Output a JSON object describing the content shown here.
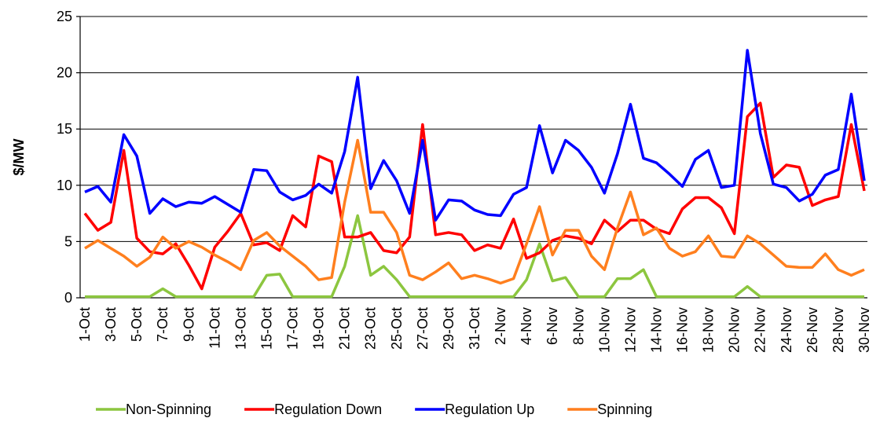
{
  "chart_data": {
    "type": "line",
    "y_label": "$/MW",
    "categories": [
      "1-Oct",
      null,
      "3-Oct",
      null,
      "5-Oct",
      null,
      "7-Oct",
      null,
      "9-Oct",
      null,
      "11-Oct",
      null,
      "13-Oct",
      null,
      "15-Oct",
      null,
      "17-Oct",
      null,
      "19-Oct",
      null,
      "21-Oct",
      null,
      "23-Oct",
      null,
      "25-Oct",
      null,
      "27-Oct",
      null,
      "29-Oct",
      null,
      "31-Oct",
      null,
      "2-Nov",
      null,
      "4-Nov",
      null,
      "6-Nov",
      null,
      "8-Nov",
      null,
      "10-Nov",
      null,
      "12-Nov",
      null,
      "14-Nov",
      null,
      "16-Nov",
      null,
      "18-Nov",
      null,
      "20-Nov",
      null,
      "22-Nov",
      null,
      "24-Nov",
      null,
      "26-Nov",
      null,
      "28-Nov",
      null,
      "30-Nov"
    ],
    "series": [
      {
        "name": "Non-Spinning",
        "color": "#8cc63f",
        "values": [
          0.1,
          0.1,
          0.1,
          0.1,
          0.1,
          0.1,
          0.8,
          0.1,
          0.1,
          0.1,
          0.1,
          0.1,
          0.1,
          0.1,
          2.0,
          2.1,
          0.1,
          0.1,
          0.1,
          0.1,
          2.8,
          7.3,
          2.0,
          2.8,
          1.6,
          0.1,
          0.1,
          0.1,
          0.1,
          0.1,
          0.1,
          0.1,
          0.1,
          0.1,
          1.6,
          4.8,
          1.5,
          1.8,
          0.1,
          0.1,
          0.1,
          1.7,
          1.7,
          2.5,
          0.1,
          0.1,
          0.1,
          0.1,
          0.1,
          0.1,
          0.1,
          1.0,
          0.1,
          0.1,
          0.1,
          0.1,
          0.1,
          0.1,
          0.1,
          0.1,
          0.1
        ]
      },
      {
        "name": "Regulation Down",
        "color": "#ff0000",
        "values": [
          7.5,
          6.0,
          6.7,
          13.1,
          5.3,
          4.1,
          3.9,
          4.8,
          2.9,
          0.8,
          4.5,
          5.9,
          7.5,
          4.7,
          4.9,
          4.2,
          7.3,
          6.3,
          12.6,
          12.1,
          5.4,
          5.4,
          5.8,
          4.2,
          4.0,
          5.4,
          15.4,
          5.6,
          5.8,
          5.6,
          4.2,
          4.7,
          4.4,
          7.0,
          3.5,
          4.0,
          5.1,
          5.5,
          5.3,
          4.8,
          6.9,
          5.9,
          6.9,
          6.9,
          6.1,
          5.7,
          7.9,
          8.9,
          8.9,
          8.0,
          5.7,
          16.1,
          17.3,
          10.7,
          11.8,
          11.6,
          8.2,
          8.7,
          9.0,
          15.4,
          9.5
        ]
      },
      {
        "name": "Regulation Up",
        "color": "#0000ff",
        "values": [
          9.4,
          9.9,
          8.5,
          14.5,
          12.6,
          7.5,
          8.8,
          8.1,
          8.5,
          8.4,
          9.0,
          8.3,
          7.6,
          11.4,
          11.3,
          9.4,
          8.7,
          9.1,
          10.1,
          9.3,
          13.0,
          19.6,
          9.7,
          12.2,
          10.4,
          7.5,
          14.0,
          6.9,
          8.7,
          8.6,
          7.8,
          7.4,
          7.3,
          9.2,
          9.8,
          15.3,
          11.1,
          14.0,
          13.1,
          11.6,
          9.3,
          12.8,
          17.2,
          12.4,
          12.0,
          11.0,
          9.9,
          12.3,
          13.1,
          9.8,
          10.0,
          22.0,
          14.6,
          10.1,
          9.8,
          8.6,
          9.2,
          10.9,
          11.4,
          18.1,
          10.4
        ]
      },
      {
        "name": "Spinning",
        "color": "#ff7f1e",
        "values": [
          4.4,
          5.1,
          4.4,
          3.7,
          2.8,
          3.6,
          5.4,
          4.4,
          5.0,
          4.5,
          3.8,
          3.2,
          2.5,
          5.1,
          5.8,
          4.6,
          3.7,
          2.8,
          1.6,
          1.8,
          8.5,
          14.0,
          7.6,
          7.6,
          5.8,
          2.0,
          1.6,
          2.3,
          3.1,
          1.7,
          2.0,
          1.7,
          1.3,
          1.7,
          4.8,
          8.1,
          3.8,
          6.0,
          6.0,
          3.7,
          2.5,
          6.2,
          9.4,
          5.6,
          6.2,
          4.4,
          3.7,
          4.1,
          5.5,
          3.7,
          3.6,
          5.5,
          4.8,
          3.8,
          2.8,
          2.7,
          2.7,
          3.9,
          2.5,
          2.0,
          2.5
        ]
      }
    ],
    "ylim": [
      0,
      25
    ],
    "yticks": [
      0,
      5,
      10,
      15,
      20,
      25
    ],
    "grid": true,
    "legend": "bottom"
  }
}
